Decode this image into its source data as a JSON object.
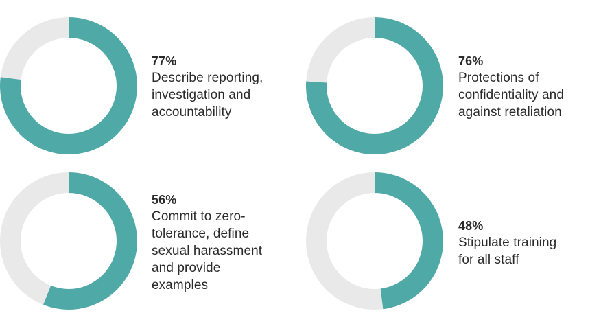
{
  "colors": {
    "filled": "#4fa9a7",
    "empty": "#e9e9e9",
    "text": "#2b2b2b"
  },
  "chart_data": [
    {
      "type": "pie",
      "value": 77,
      "percent_label": "77%",
      "label": "Describe reporting, investigation and accountability",
      "lines": [
        "Describe reporting,",
        "investigation and",
        "accountability"
      ]
    },
    {
      "type": "pie",
      "value": 76,
      "percent_label": "76%",
      "label": "Protections of confidentiality and against retaliation",
      "lines": [
        "Protections of",
        "confidentiality and",
        "against retaliation"
      ]
    },
    {
      "type": "pie",
      "value": 56,
      "percent_label": "56%",
      "label": "Commit to zero-tolerance, define sexual harassment and provide examples",
      "lines": [
        "Commit to zero-",
        "tolerance, define",
        "sexual harassment",
        "and provide",
        "examples"
      ]
    },
    {
      "type": "pie",
      "value": 48,
      "percent_label": "48%",
      "label": "Stipulate training for all staff",
      "lines": [
        "Stipulate training",
        "for all staff"
      ]
    }
  ]
}
